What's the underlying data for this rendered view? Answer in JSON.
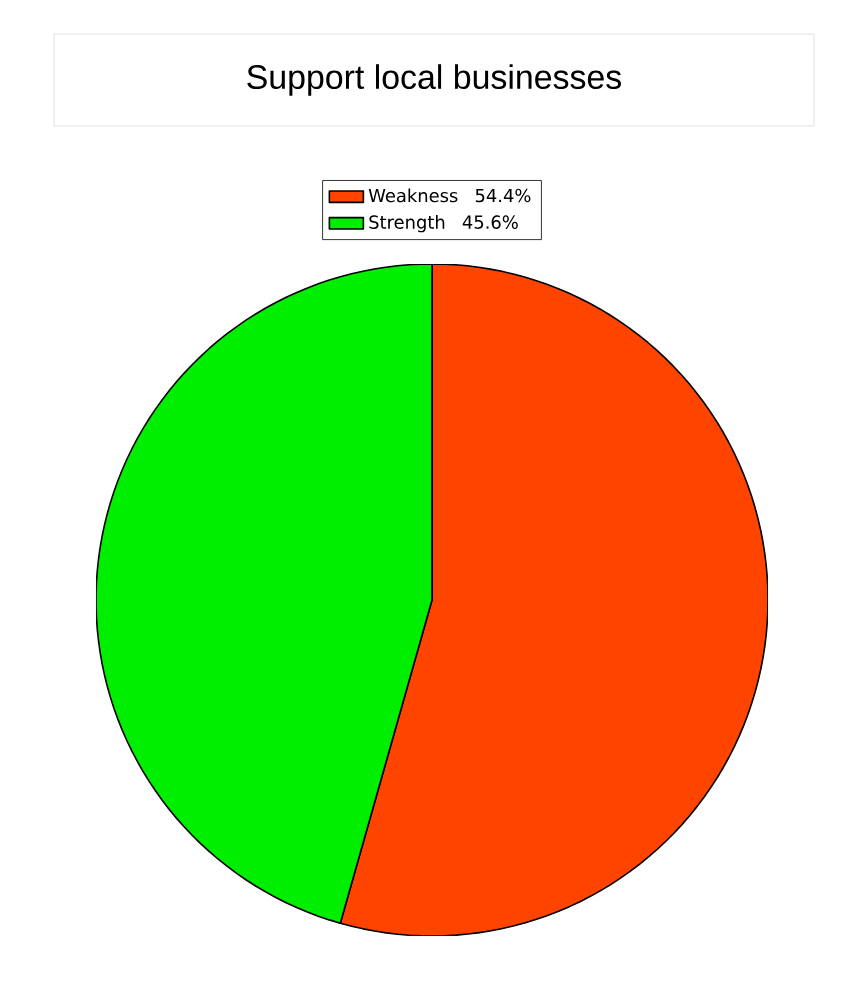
{
  "chart_data": {
    "type": "pie",
    "title": "Support local businesses",
    "categories": [
      "Weakness",
      "Strength"
    ],
    "values": [
      54.4,
      45.6
    ],
    "value_labels": [
      "54.4%",
      "45.6%"
    ],
    "colors": [
      "#ff4400",
      "#00ee00"
    ],
    "legend": "top"
  }
}
